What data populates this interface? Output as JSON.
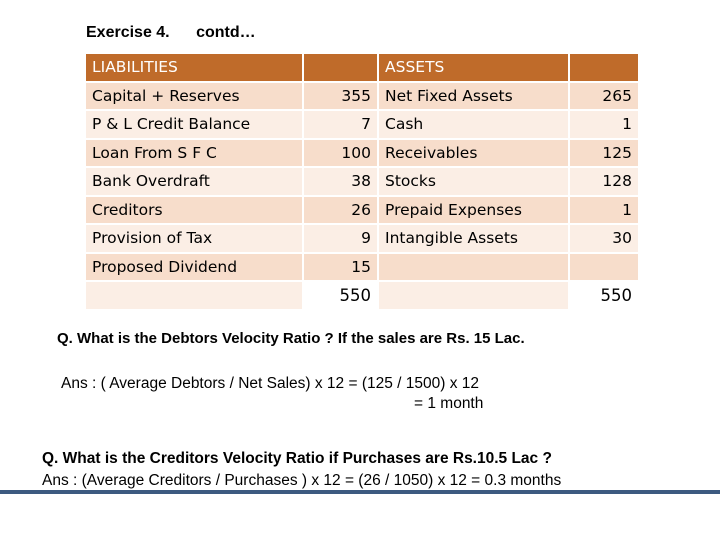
{
  "heading": {
    "title": "Exercise 4.",
    "contd": "contd…"
  },
  "table": {
    "header": {
      "liabilities": "LIABILITIES",
      "assets": "ASSETS"
    },
    "rows": [
      {
        "liability": "Capital + Reserves",
        "l_value": "355",
        "asset": "Net Fixed Assets",
        "a_value": "265"
      },
      {
        "liability": "P & L Credit Balance",
        "l_value": "7",
        "asset": "Cash",
        "a_value": "1"
      },
      {
        "liability": "Loan From S F C",
        "l_value": "100",
        "asset": "Receivables",
        "a_value": "125"
      },
      {
        "liability": "Bank Overdraft",
        "l_value": "38",
        "asset": "Stocks",
        "a_value": "128"
      },
      {
        "liability": "Creditors",
        "l_value": "26",
        "asset": "Prepaid Expenses",
        "a_value": "1"
      },
      {
        "liability": "Provision of Tax",
        "l_value": "9",
        "asset": "Intangible Assets",
        "a_value": "30"
      },
      {
        "liability": "Proposed Dividend",
        "l_value": "15",
        "asset": "",
        "a_value": ""
      }
    ],
    "totals": {
      "liabilities": "550",
      "assets": "550"
    }
  },
  "q1": {
    "question": "Q. What is the Debtors Velocity Ratio ? If the  sales are Rs. 15 Lac.",
    "answer_line1": "Ans  : ( Average Debtors / Net Sales) x 12  =  (125 / 1500) x 12",
    "answer_line2": "=   1 month"
  },
  "q2": {
    "question": "Q. What is the  Creditors Velocity Ratio  if Purchases are  Rs.10.5 Lac ?",
    "answer": "Ans :  (Average Creditors / Purchases ) x 12    =  (26 / 1050) x 12 = 0.3 months"
  },
  "colors": {
    "header_bg": "#bf6b2a",
    "row_odd": "#f7ddcb",
    "row_even": "#fbeee5",
    "rule": "#3d5a80"
  }
}
